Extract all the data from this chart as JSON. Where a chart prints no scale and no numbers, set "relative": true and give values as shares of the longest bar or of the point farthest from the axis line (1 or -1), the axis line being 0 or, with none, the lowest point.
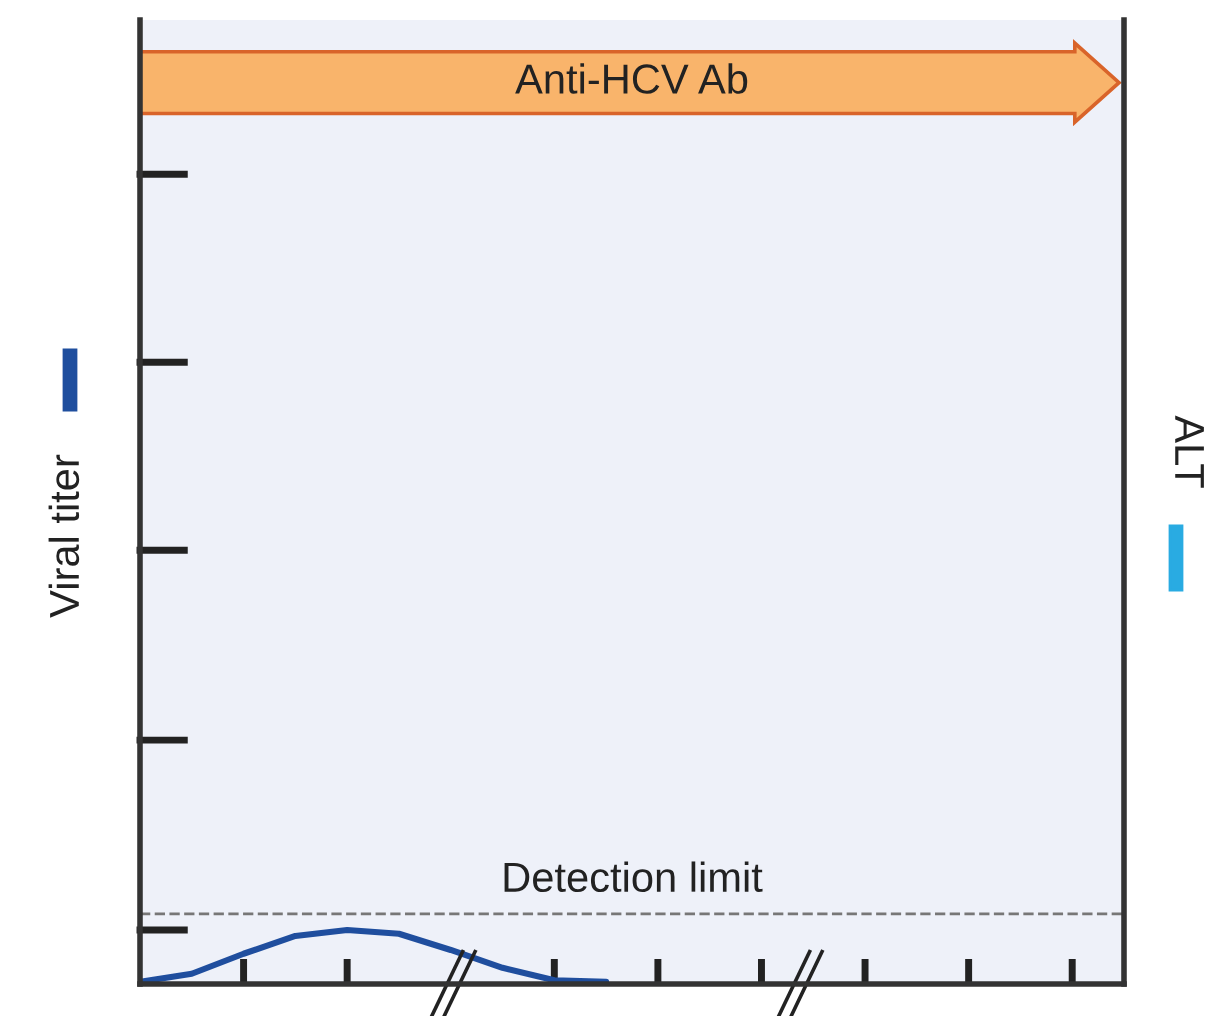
{
  "chart_data": {
    "type": "line",
    "relative": true,
    "annotations": [
      "Anti-HCV Ab",
      "Viral titer",
      "ALT"
    ],
    "categories": [
      null,
      null,
      null,
      null,
      null,
      null,
      null,
      null,
      null,
      null,
      null,
      null,
      null,
      null,
      null,
      null,
      null,
      null,
      null,
      null
    ],
    "series": [
      {
        "color": "#1f4e9e",
        "values": [
          0.04,
          0.19,
          0.56,
          0.89,
          1,
          0.93,
          0.63,
          0.3,
          0.07,
          0.04,
          null,
          null,
          null,
          null,
          null,
          null,
          null,
          null,
          null,
          null
        ]
      },
      {
        "color": "#29abe2",
        "values": [
          null,
          null,
          null,
          null,
          null,
          null,
          null,
          null,
          null,
          null,
          null,
          null,
          null,
          null,
          null,
          null,
          null,
          null,
          null,
          null
        ]
      }
    ],
    "ref_lines": [
      {
        "axis": "y",
        "value": 1.3,
        "label": "Detection limit",
        "color": "#777777",
        "line_style": "dashed"
      }
    ],
    "grid": false,
    "legend": false,
    "marker": "none",
    "line_style": "solid"
  }
}
